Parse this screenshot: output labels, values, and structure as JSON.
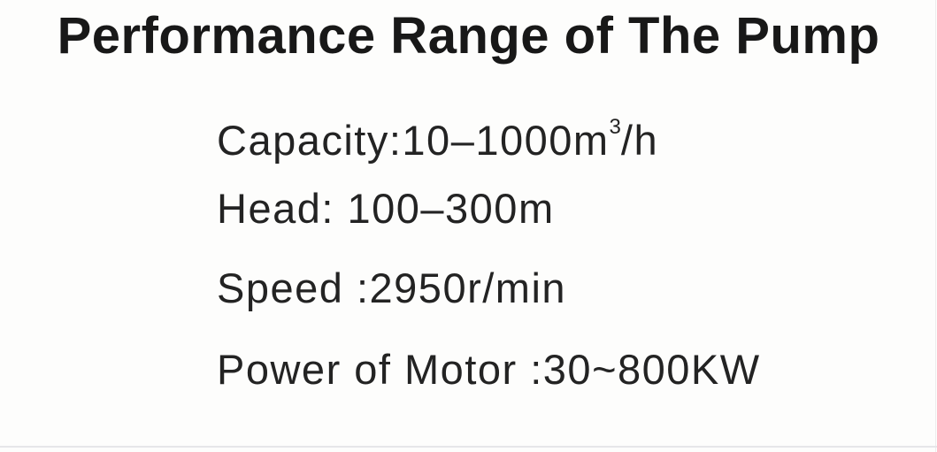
{
  "page": {
    "title": "Performance Range of The Pump",
    "specs": {
      "capacity": {
        "prefix": "Capacity:10–1000m",
        "sup": "3",
        "suffix": "/h"
      },
      "head": {
        "text": "Head: 100–300m"
      },
      "speed": {
        "text": "Speed :2950r/min"
      },
      "power": {
        "text": "Power of Motor :30~800KW"
      }
    },
    "colors": {
      "background": "#fdfdfc",
      "text": "#232323",
      "title_text": "#181818",
      "divider": "#e6e6e9"
    }
  }
}
